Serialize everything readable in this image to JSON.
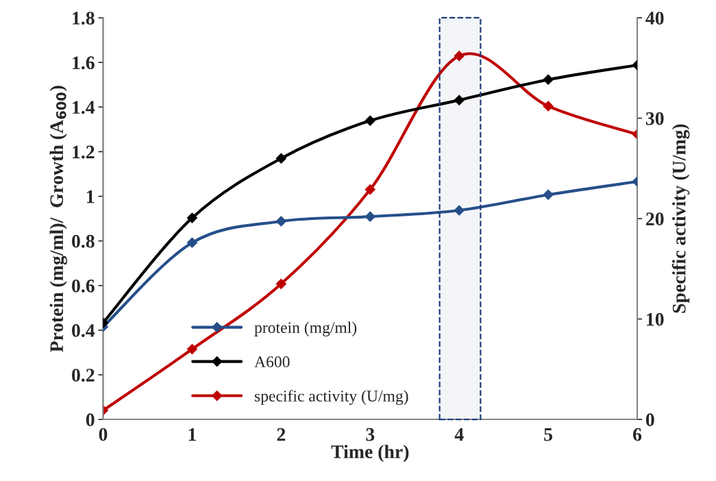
{
  "chart_data": {
    "type": "line",
    "xlabel": "Time (hr)",
    "ylabel": "Protein (mg/ml)/  Growth (A$_{600}$)",
    "y2label": "Specific activity (U/mg)",
    "x": [
      0,
      1,
      2,
      3,
      4,
      5,
      6
    ],
    "series": [
      {
        "name": "protein (mg/ml)",
        "color": "#264f8a",
        "values": [
          0.415,
          0.792,
          0.888,
          0.909,
          0.937,
          1.007,
          1.066
        ]
      },
      {
        "name": "A600",
        "color": "#000000",
        "values": [
          0.433,
          0.903,
          1.17,
          1.339,
          1.431,
          1.523,
          1.588
        ]
      },
      {
        "name": "specific activity (U/mg)",
        "color": "#c00000",
        "axis": "y2",
        "values": [
          0.9,
          7.0,
          13.5,
          22.9,
          36.2,
          31.2,
          28.4
        ]
      }
    ],
    "xlim": [
      0,
      6
    ],
    "xticks": [
      0,
      1,
      2,
      3,
      4,
      5,
      6
    ],
    "ylim": [
      0,
      1.8
    ],
    "yticks": [
      0,
      0.2,
      0.4,
      0.6,
      0.8,
      1,
      1.2,
      1.4,
      1.6,
      1.8
    ],
    "y2lim": [
      0,
      40
    ],
    "y2ticks": [
      0,
      10,
      20,
      30,
      40
    ],
    "bands": [
      {
        "axis": "x",
        "from": 3.78,
        "to": 4.24,
        "color": "#1f3f7a"
      }
    ],
    "marker": "diamond",
    "line_style": "solid",
    "legend": "bottom",
    "grid": false
  }
}
